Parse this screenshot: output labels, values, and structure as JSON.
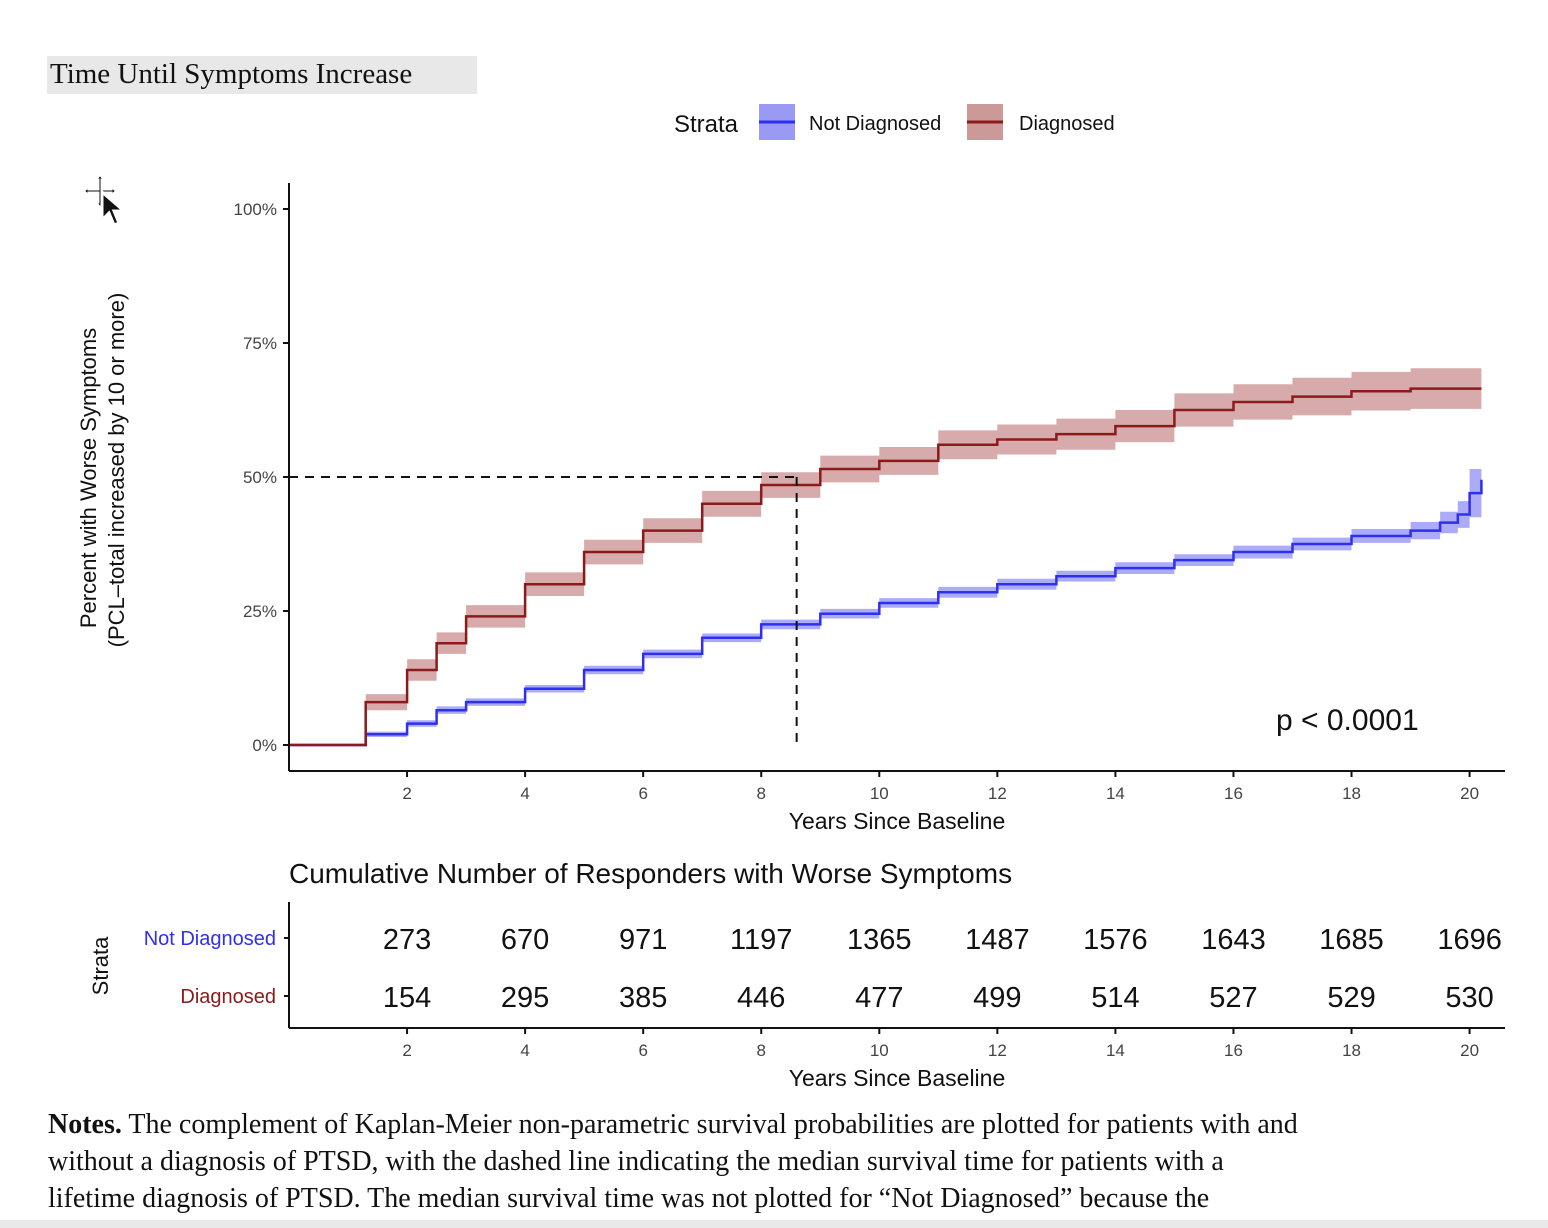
{
  "page_title": "Time Until Symptoms Increase",
  "colors": {
    "not_diagnosed": "#2f2ff0",
    "diagnosed": "#8b1a1a",
    "not_diagnosed_band": "#8f8ff5",
    "diagnosed_band": "#c98f8f"
  },
  "icons": {
    "cursor": "move-cursor-icon"
  },
  "legend": {
    "title": "Strata",
    "items": [
      "Not Diagnosed",
      "Diagnosed"
    ]
  },
  "chart_data": [
    {
      "type": "line",
      "xlabel": "Years Since Baseline",
      "ylabel": "Percent with Worse Symptoms",
      "ylabel2": "(PCL–total increased by 10 or more)",
      "xlim": [
        0,
        20.6
      ],
      "ylim": [
        0,
        100
      ],
      "x_ticks": [
        2,
        4,
        6,
        8,
        10,
        12,
        14,
        16,
        18,
        20
      ],
      "y_ticks": [
        0,
        25,
        50,
        75,
        100
      ],
      "y_tick_labels": [
        "0%",
        "25%",
        "50%",
        "75%",
        "100%"
      ],
      "annotation": "p < 0.0001",
      "median_line": {
        "x": 8.6,
        "y": 50
      },
      "series": [
        {
          "name": "Not Diagnosed",
          "x": [
            0,
            1,
            1.3,
            2,
            2.5,
            3,
            4,
            5,
            6,
            7,
            8,
            9,
            10,
            11,
            12,
            13,
            14,
            15,
            16,
            17,
            18,
            19,
            19.5,
            19.8,
            20,
            20.2
          ],
          "y": [
            0,
            0,
            2,
            4,
            6.5,
            8,
            10.5,
            14,
            17,
            20,
            22.5,
            24.5,
            26.5,
            28.5,
            30,
            31.5,
            33,
            34.5,
            36,
            37.5,
            39,
            40,
            41.5,
            43,
            47,
            49.5
          ],
          "band_halfwidth": [
            0,
            0,
            0.5,
            0.6,
            0.7,
            0.7,
            0.7,
            0.8,
            0.8,
            0.8,
            0.9,
            0.9,
            0.9,
            1.0,
            1.0,
            1.0,
            1.1,
            1.1,
            1.2,
            1.2,
            1.3,
            1.6,
            2.0,
            2.5,
            4.5,
            7.5
          ]
        },
        {
          "name": "Diagnosed",
          "x": [
            0,
            1,
            1.3,
            2,
            2.5,
            3,
            4,
            5,
            6,
            7,
            8,
            9,
            10,
            11,
            12,
            13,
            14,
            15,
            16,
            17,
            18,
            19,
            20.2
          ],
          "y": [
            0,
            0,
            8,
            14,
            19,
            24,
            30,
            36,
            40,
            45,
            48.5,
            51.5,
            53,
            56,
            57,
            58,
            59.5,
            62.5,
            64,
            65,
            66,
            66.5,
            66.5
          ],
          "band_halfwidth": [
            0,
            0,
            1.5,
            2.0,
            2.0,
            2.1,
            2.2,
            2.3,
            2.3,
            2.4,
            2.4,
            2.5,
            2.6,
            2.7,
            2.8,
            2.9,
            3.0,
            3.1,
            3.3,
            3.5,
            3.6,
            3.8,
            4.0
          ]
        }
      ]
    },
    {
      "type": "table",
      "title": "Cumulative Number of Responders with Worse Symptoms",
      "xlabel": "Years Since Baseline",
      "ylabel": "Strata",
      "x_ticks": [
        2,
        4,
        6,
        8,
        10,
        12,
        14,
        16,
        18,
        20
      ],
      "rows": [
        {
          "name": "Not Diagnosed",
          "values": [
            273,
            670,
            971,
            1197,
            1365,
            1487,
            1576,
            1643,
            1685,
            1696
          ]
        },
        {
          "name": "Diagnosed",
          "values": [
            154,
            295,
            385,
            446,
            477,
            499,
            514,
            527,
            529,
            530
          ]
        }
      ]
    }
  ],
  "notes": {
    "label": "Notes.",
    "line1": " The complement of Kaplan-Meier non-parametric survival probabilities are plotted for patients with and",
    "line2": "without a diagnosis of PTSD, with the dashed line indicating the median survival time for patients with a",
    "line3": "lifetime diagnosis of PTSD.  The median survival time was not plotted for “Not Diagnosed”  because the"
  }
}
